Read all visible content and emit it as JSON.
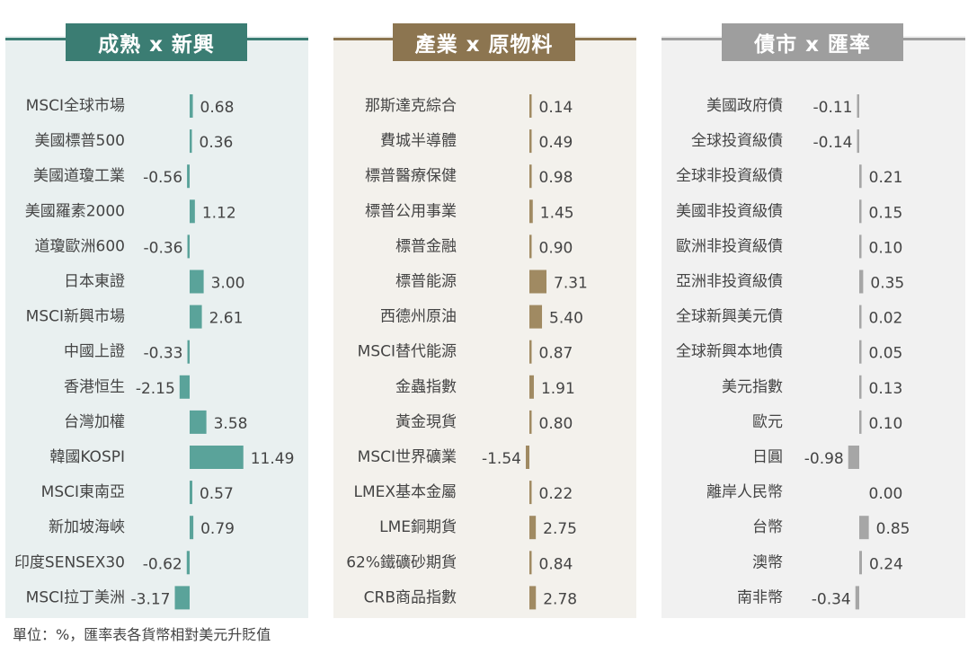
{
  "footnote": "單位：%，匯率表各貨幣相對美元升貶值",
  "colors": {
    "panel1_bg": "#e9f0f0",
    "panel1_accent": "#3b7d73",
    "panel1_bar": "#5aa39a",
    "panel2_bg": "#f3f1ec",
    "panel2_accent": "#8c7550",
    "panel2_bar": "#a08a62",
    "panel3_bg": "#f1f1f1",
    "panel3_accent": "#9e9e9e",
    "panel3_bar": "#a6a6a6"
  },
  "chart_data": [
    {
      "type": "bar",
      "orientation": "horizontal",
      "title": "成熟 x 新興",
      "categories": [
        "MSCI全球市場",
        "美國標普500",
        "美國道瓊工業",
        "美國羅素2000",
        "道瓊歐洲600",
        "日本東證",
        "MSCI新興市場",
        "中國上證",
        "香港恒生",
        "台灣加權",
        "韓國KOSPI",
        "MSCI東南亞",
        "新加坡海峽",
        "印度SENSEX30",
        "MSCI拉丁美洲"
      ],
      "values": [
        0.68,
        0.36,
        -0.56,
        1.12,
        -0.36,
        3.0,
        2.61,
        -0.33,
        -2.15,
        3.58,
        11.49,
        0.57,
        0.79,
        -0.62,
        -3.17
      ],
      "labels": [
        "0.68",
        "0.36",
        "-0.56",
        "1.12",
        "-0.36",
        "3.00",
        "2.61",
        "-0.33",
        "-2.15",
        "3.58",
        "11.49",
        "0.57",
        "0.79",
        "-0.62",
        "-3.17"
      ]
    },
    {
      "type": "bar",
      "orientation": "horizontal",
      "title": "產業 x 原物料",
      "categories": [
        "那斯達克綜合",
        "費城半導體",
        "標普醫療保健",
        "標普公用事業",
        "標普金融",
        "標普能源",
        "西德州原油",
        "MSCI替代能源",
        "金蟲指數",
        "黃金現貨",
        "MSCI世界礦業",
        "LMEX基本金屬",
        "LME銅期貨",
        "62%鐵礦砂期貨",
        "CRB商品指數"
      ],
      "values": [
        0.14,
        0.49,
        0.98,
        1.45,
        0.9,
        7.31,
        5.4,
        0.87,
        1.91,
        0.8,
        -1.54,
        0.22,
        2.75,
        0.84,
        2.78
      ],
      "labels": [
        "0.14",
        "0.49",
        "0.98",
        "1.45",
        "0.90",
        "7.31",
        "5.40",
        "0.87",
        "1.91",
        "0.80",
        "-1.54",
        "0.22",
        "2.75",
        "0.84",
        "2.78"
      ]
    },
    {
      "type": "bar",
      "orientation": "horizontal",
      "title": "債市 x 匯率",
      "categories": [
        "美國政府債",
        "全球投資級債",
        "全球非投資級債",
        "美國非投資級債",
        "歐洲非投資級債",
        "亞洲非投資級債",
        "全球新興美元債",
        "全球新興本地債",
        "美元指數",
        "歐元",
        "日圓",
        "離岸人民幣",
        "台幣",
        "澳幣",
        "南非幣"
      ],
      "values": [
        -0.11,
        -0.14,
        0.21,
        0.15,
        0.1,
        0.35,
        0.02,
        0.05,
        0.13,
        0.1,
        -0.98,
        0.0,
        0.85,
        0.24,
        -0.34
      ],
      "labels": [
        "-0.11",
        "-0.14",
        "0.21",
        "0.15",
        "0.10",
        "0.35",
        "0.02",
        "0.05",
        "0.13",
        "0.10",
        "-0.98",
        "0.00",
        "0.85",
        "0.24",
        "-0.34"
      ]
    }
  ]
}
